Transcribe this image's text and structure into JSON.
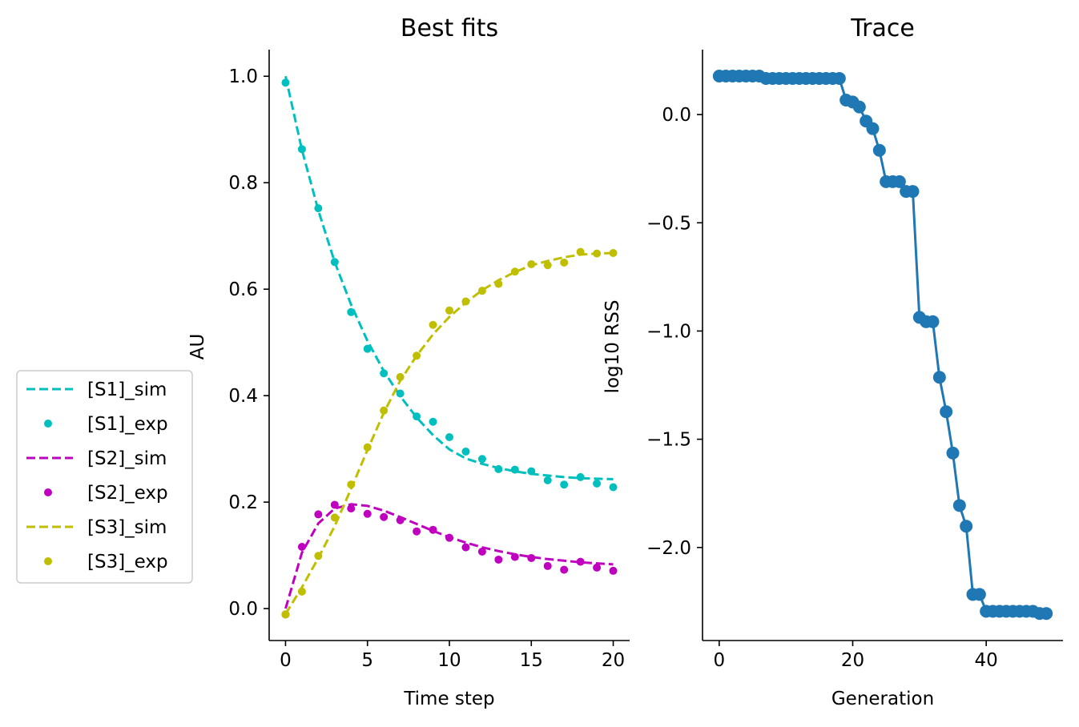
{
  "chart_data": [
    {
      "type": "line",
      "title": "Best fits",
      "xlabel": "Time step",
      "ylabel": "AU",
      "xlim": [
        -1,
        21
      ],
      "ylim": [
        -0.06,
        1.05
      ],
      "xticks": [
        "0",
        "5",
        "10",
        "15",
        "20"
      ],
      "yticks": [
        "0.0",
        "0.2",
        "0.4",
        "0.6",
        "0.8",
        "1.0"
      ],
      "legend_position": "outside-left",
      "grid": false,
      "x": [
        0,
        1,
        2,
        3,
        4,
        5,
        6,
        7,
        8,
        9,
        10,
        11,
        12,
        13,
        14,
        15,
        16,
        17,
        18,
        19,
        20
      ],
      "series": [
        {
          "name": "[S1]_sim",
          "style": "dashed",
          "color": "#00bfbf",
          "values": [
            1.0,
            0.862,
            0.748,
            0.651,
            0.571,
            0.503,
            0.446,
            0.399,
            0.359,
            0.326,
            0.299,
            0.282,
            0.272,
            0.264,
            0.258,
            0.253,
            0.25,
            0.247,
            0.245,
            0.244,
            0.243
          ]
        },
        {
          "name": "[S1]_exp",
          "style": "dots",
          "color": "#00bfbf",
          "values": [
            0.988,
            0.863,
            0.752,
            0.651,
            0.557,
            0.488,
            0.442,
            0.404,
            0.361,
            0.351,
            0.322,
            0.295,
            0.281,
            0.262,
            0.261,
            0.258,
            0.241,
            0.233,
            0.247,
            0.235,
            0.228
          ]
        },
        {
          "name": "[S2]_sim",
          "style": "dashed",
          "color": "#bf00bf",
          "values": [
            0.0,
            0.105,
            0.16,
            0.188,
            0.196,
            0.193,
            0.184,
            0.172,
            0.159,
            0.146,
            0.134,
            0.124,
            0.115,
            0.108,
            0.102,
            0.097,
            0.093,
            0.09,
            0.087,
            0.085,
            0.083
          ]
        },
        {
          "name": "[S2]_exp",
          "style": "dots",
          "color": "#bf00bf",
          "values": [
            -0.011,
            0.116,
            0.177,
            0.195,
            0.188,
            0.178,
            0.172,
            0.166,
            0.145,
            0.148,
            0.133,
            0.115,
            0.107,
            0.092,
            0.097,
            0.095,
            0.08,
            0.073,
            0.088,
            0.077,
            0.071
          ]
        },
        {
          "name": "[S3]_sim",
          "style": "dashed",
          "color": "#bfbf00",
          "values": [
            -0.01,
            0.04,
            0.095,
            0.155,
            0.225,
            0.298,
            0.368,
            0.428,
            0.475,
            0.515,
            0.548,
            0.575,
            0.598,
            0.617,
            0.632,
            0.645,
            0.653,
            0.66,
            0.665,
            0.667,
            0.668
          ]
        },
        {
          "name": "[S3]_exp",
          "style": "dots",
          "color": "#bfbf00",
          "values": [
            -0.011,
            0.032,
            0.099,
            0.171,
            0.233,
            0.303,
            0.372,
            0.435,
            0.475,
            0.533,
            0.56,
            0.577,
            0.597,
            0.61,
            0.633,
            0.647,
            0.645,
            0.65,
            0.67,
            0.667,
            0.668
          ]
        }
      ]
    },
    {
      "type": "line",
      "title": "Trace",
      "xlabel": "Generation",
      "ylabel": "log10 RSS",
      "xlim": [
        -2.5,
        51.5
      ],
      "ylim": [
        -2.43,
        0.3
      ],
      "xticks": [
        "0",
        "20",
        "40"
      ],
      "yticks": [
        "0.0",
        "−0.5",
        "−1.0",
        "−1.5",
        "−2.0"
      ],
      "grid": false,
      "color": "#1f77b4",
      "marker": "circle",
      "x": [
        0,
        1,
        2,
        3,
        4,
        5,
        6,
        7,
        8,
        9,
        10,
        11,
        12,
        13,
        14,
        15,
        16,
        17,
        18,
        19,
        20,
        21,
        22,
        23,
        24,
        25,
        26,
        27,
        28,
        29,
        30,
        31,
        32,
        33,
        34,
        35,
        36,
        37,
        38,
        39,
        40,
        41,
        42,
        43,
        44,
        45,
        46,
        47,
        48,
        49
      ],
      "y": [
        0.178,
        0.178,
        0.178,
        0.178,
        0.178,
        0.178,
        0.178,
        0.167,
        0.167,
        0.167,
        0.167,
        0.167,
        0.167,
        0.167,
        0.167,
        0.167,
        0.167,
        0.167,
        0.167,
        0.067,
        0.058,
        0.035,
        -0.03,
        -0.065,
        -0.165,
        -0.31,
        -0.31,
        -0.31,
        -0.355,
        -0.355,
        -0.937,
        -0.957,
        -0.957,
        -1.214,
        -1.373,
        -1.564,
        -1.806,
        -1.902,
        -2.217,
        -2.217,
        -2.295,
        -2.295,
        -2.295,
        -2.295,
        -2.295,
        -2.295,
        -2.295,
        -2.295,
        -2.305,
        -2.305
      ]
    }
  ]
}
